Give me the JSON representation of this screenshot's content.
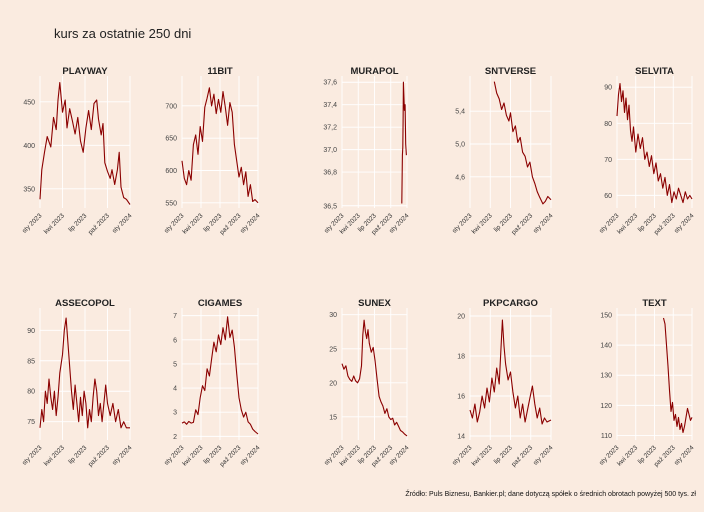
{
  "title": "kurs za ostatnie 250 dni",
  "source": "Źródło: Puls Biznesu, Bankier.pl; dane dotyczą spółek o średnich obrotach powyżej 500 tys. zł",
  "colors": {
    "line": "#8b0000",
    "background": "#faebe0",
    "grid": "#ffffff"
  },
  "chart_data": [
    {
      "type": "line",
      "title": "PLAYWAY",
      "x_ticks": [
        "sty 2023",
        "kwi 2023",
        "lip 2023",
        "paź 2023",
        "sty 2024"
      ],
      "y_ticks": [
        350,
        400,
        450
      ],
      "ylim": [
        328,
        475
      ],
      "points": [
        [
          0,
          338
        ],
        [
          0.02,
          372
        ],
        [
          0.05,
          392
        ],
        [
          0.08,
          410
        ],
        [
          0.12,
          398
        ],
        [
          0.15,
          432
        ],
        [
          0.18,
          418
        ],
        [
          0.2,
          452
        ],
        [
          0.22,
          472
        ],
        [
          0.25,
          438
        ],
        [
          0.28,
          452
        ],
        [
          0.3,
          420
        ],
        [
          0.33,
          442
        ],
        [
          0.36,
          428
        ],
        [
          0.39,
          413
        ],
        [
          0.42,
          432
        ],
        [
          0.45,
          405
        ],
        [
          0.48,
          392
        ],
        [
          0.51,
          420
        ],
        [
          0.54,
          440
        ],
        [
          0.57,
          418
        ],
        [
          0.6,
          448
        ],
        [
          0.63,
          452
        ],
        [
          0.65,
          430
        ],
        [
          0.68,
          412
        ],
        [
          0.7,
          425
        ],
        [
          0.72,
          380
        ],
        [
          0.75,
          370
        ],
        [
          0.78,
          362
        ],
        [
          0.8,
          372
        ],
        [
          0.83,
          355
        ],
        [
          0.86,
          372
        ],
        [
          0.88,
          392
        ],
        [
          0.9,
          352
        ],
        [
          0.93,
          340
        ],
        [
          0.96,
          338
        ],
        [
          1,
          332
        ]
      ]
    },
    {
      "type": "line",
      "title": "11BIT",
      "x_ticks": [
        "sty 2023",
        "kwi 2023",
        "lip 2023",
        "paź 2023",
        "sty 2024"
      ],
      "y_ticks": [
        550,
        600,
        650,
        700
      ],
      "ylim": [
        542,
        740
      ],
      "points": [
        [
          0,
          615
        ],
        [
          0.03,
          588
        ],
        [
          0.06,
          578
        ],
        [
          0.09,
          600
        ],
        [
          0.12,
          585
        ],
        [
          0.15,
          640
        ],
        [
          0.18,
          655
        ],
        [
          0.21,
          625
        ],
        [
          0.24,
          668
        ],
        [
          0.27,
          645
        ],
        [
          0.3,
          698
        ],
        [
          0.33,
          712
        ],
        [
          0.36,
          728
        ],
        [
          0.39,
          700
        ],
        [
          0.42,
          718
        ],
        [
          0.45,
          688
        ],
        [
          0.48,
          710
        ],
        [
          0.51,
          690
        ],
        [
          0.54,
          722
        ],
        [
          0.57,
          698
        ],
        [
          0.6,
          670
        ],
        [
          0.63,
          705
        ],
        [
          0.66,
          690
        ],
        [
          0.69,
          640
        ],
        [
          0.72,
          615
        ],
        [
          0.75,
          590
        ],
        [
          0.78,
          605
        ],
        [
          0.81,
          578
        ],
        [
          0.84,
          598
        ],
        [
          0.87,
          560
        ],
        [
          0.9,
          578
        ],
        [
          0.93,
          552
        ],
        [
          0.96,
          555
        ],
        [
          1,
          550
        ]
      ]
    },
    {
      "type": "line",
      "title": "MURAPOL",
      "x_ticks": [
        "sty 2023",
        "kwi 2023",
        "lip 2023",
        "paź 2023",
        "sty 2024"
      ],
      "y_ticks": [
        36.5,
        36.8,
        37,
        37.2,
        37.4,
        37.6
      ],
      "ylim": [
        36.48,
        37.62
      ],
      "y_labels": [
        "36,5",
        "36,8",
        "37,0",
        "37,2",
        "37,4",
        "37,6"
      ],
      "points": [
        [
          0.92,
          36.52
        ],
        [
          0.93,
          36.95
        ],
        [
          0.935,
          37.02
        ],
        [
          0.94,
          37.25
        ],
        [
          0.945,
          37.6
        ],
        [
          0.95,
          37.5
        ],
        [
          0.96,
          37.35
        ],
        [
          0.97,
          37.4
        ],
        [
          0.98,
          37.05
        ],
        [
          0.99,
          36.95
        ]
      ]
    },
    {
      "type": "line",
      "title": "SNTVERSE",
      "x_ticks": [
        "sty 2023",
        "kwi 2023",
        "lip 2023",
        "paź 2023",
        "sty 2024"
      ],
      "y_ticks": [
        4.6,
        5.0,
        5.4
      ],
      "ylim": [
        4.22,
        5.78
      ],
      "y_labels": [
        "4,6",
        "5,0",
        "5,4"
      ],
      "points": [
        [
          0.3,
          5.76
        ],
        [
          0.33,
          5.62
        ],
        [
          0.36,
          5.55
        ],
        [
          0.39,
          5.42
        ],
        [
          0.42,
          5.5
        ],
        [
          0.45,
          5.35
        ],
        [
          0.48,
          5.28
        ],
        [
          0.5,
          5.38
        ],
        [
          0.53,
          5.15
        ],
        [
          0.56,
          5.22
        ],
        [
          0.59,
          5.02
        ],
        [
          0.62,
          5.08
        ],
        [
          0.65,
          4.9
        ],
        [
          0.68,
          4.85
        ],
        [
          0.71,
          4.72
        ],
        [
          0.74,
          4.78
        ],
        [
          0.77,
          4.6
        ],
        [
          0.8,
          4.52
        ],
        [
          0.83,
          4.42
        ],
        [
          0.86,
          4.35
        ],
        [
          0.9,
          4.27
        ],
        [
          0.93,
          4.3
        ],
        [
          0.96,
          4.36
        ],
        [
          1,
          4.32
        ]
      ]
    },
    {
      "type": "line",
      "title": "SELVITA",
      "x_ticks": [
        "sty 2023",
        "kwi 2023",
        "lip 2023",
        "paź 2023",
        "sty 2024"
      ],
      "y_ticks": [
        60,
        70,
        80,
        90
      ],
      "ylim": [
        56.5,
        92
      ],
      "points": [
        [
          0,
          82
        ],
        [
          0.02,
          88
        ],
        [
          0.04,
          91
        ],
        [
          0.06,
          86
        ],
        [
          0.08,
          89
        ],
        [
          0.1,
          83
        ],
        [
          0.12,
          87
        ],
        [
          0.14,
          81
        ],
        [
          0.16,
          85
        ],
        [
          0.18,
          78
        ],
        [
          0.2,
          75
        ],
        [
          0.22,
          79
        ],
        [
          0.25,
          72
        ],
        [
          0.28,
          77
        ],
        [
          0.31,
          73
        ],
        [
          0.34,
          76
        ],
        [
          0.37,
          70
        ],
        [
          0.4,
          72
        ],
        [
          0.43,
          68
        ],
        [
          0.46,
          71
        ],
        [
          0.49,
          66
        ],
        [
          0.52,
          69
        ],
        [
          0.55,
          64
        ],
        [
          0.58,
          66
        ],
        [
          0.61,
          62
        ],
        [
          0.64,
          65
        ],
        [
          0.67,
          60
        ],
        [
          0.7,
          63
        ],
        [
          0.73,
          58
        ],
        [
          0.76,
          61
        ],
        [
          0.79,
          59
        ],
        [
          0.82,
          62
        ],
        [
          0.85,
          60
        ],
        [
          0.88,
          58
        ],
        [
          0.91,
          61
        ],
        [
          0.94,
          59
        ],
        [
          0.97,
          60
        ],
        [
          1,
          59
        ]
      ]
    },
    {
      "type": "line",
      "title": "ASSECOPOL",
      "x_ticks": [
        "sty 2023",
        "kwi 2023",
        "lip 2023",
        "paź 2023",
        "sty 2024"
      ],
      "y_ticks": [
        75,
        80,
        85,
        90
      ],
      "ylim": [
        72,
        93
      ],
      "points": [
        [
          0,
          74
        ],
        [
          0.02,
          77
        ],
        [
          0.04,
          75
        ],
        [
          0.06,
          80
        ],
        [
          0.08,
          78
        ],
        [
          0.1,
          82
        ],
        [
          0.12,
          79
        ],
        [
          0.14,
          77
        ],
        [
          0.16,
          80
        ],
        [
          0.18,
          76
        ],
        [
          0.2,
          79
        ],
        [
          0.22,
          83
        ],
        [
          0.25,
          86
        ],
        [
          0.27,
          90
        ],
        [
          0.29,
          92
        ],
        [
          0.31,
          88
        ],
        [
          0.33,
          84
        ],
        [
          0.35,
          80
        ],
        [
          0.37,
          77
        ],
        [
          0.39,
          81
        ],
        [
          0.41,
          78
        ],
        [
          0.43,
          75
        ],
        [
          0.45,
          79
        ],
        [
          0.47,
          76
        ],
        [
          0.49,
          80
        ],
        [
          0.51,
          78
        ],
        [
          0.53,
          74
        ],
        [
          0.55,
          77
        ],
        [
          0.57,
          75
        ],
        [
          0.59,
          79
        ],
        [
          0.61,
          82
        ],
        [
          0.63,
          80
        ],
        [
          0.65,
          76
        ],
        [
          0.67,
          78
        ],
        [
          0.69,
          75
        ],
        [
          0.71,
          78
        ],
        [
          0.73,
          81
        ],
        [
          0.75,
          78
        ],
        [
          0.78,
          76
        ],
        [
          0.81,
          78
        ],
        [
          0.84,
          75
        ],
        [
          0.87,
          77
        ],
        [
          0.9,
          74
        ],
        [
          0.93,
          75
        ],
        [
          0.96,
          74
        ],
        [
          1,
          74
        ]
      ]
    },
    {
      "type": "line",
      "title": "CIGAMES",
      "x_ticks": [
        "sty 2023",
        "kwi 2023",
        "lip 2023",
        "paź 2023",
        "sty 2024"
      ],
      "y_ticks": [
        2,
        3,
        4,
        5,
        6,
        7
      ],
      "ylim": [
        1.85,
        7.15
      ],
      "points": [
        [
          0,
          2.55
        ],
        [
          0.03,
          2.6
        ],
        [
          0.06,
          2.5
        ],
        [
          0.09,
          2.62
        ],
        [
          0.12,
          2.55
        ],
        [
          0.15,
          2.58
        ],
        [
          0.18,
          3.1
        ],
        [
          0.21,
          2.9
        ],
        [
          0.24,
          3.6
        ],
        [
          0.27,
          4.1
        ],
        [
          0.3,
          3.9
        ],
        [
          0.33,
          4.8
        ],
        [
          0.36,
          4.5
        ],
        [
          0.39,
          5.2
        ],
        [
          0.42,
          5.9
        ],
        [
          0.45,
          5.5
        ],
        [
          0.48,
          6.2
        ],
        [
          0.51,
          5.8
        ],
        [
          0.54,
          6.5
        ],
        [
          0.57,
          6.0
        ],
        [
          0.6,
          6.95
        ],
        [
          0.63,
          6.1
        ],
        [
          0.66,
          6.4
        ],
        [
          0.69,
          5.7
        ],
        [
          0.72,
          4.6
        ],
        [
          0.75,
          3.6
        ],
        [
          0.78,
          3.1
        ],
        [
          0.81,
          2.8
        ],
        [
          0.84,
          3.0
        ],
        [
          0.87,
          2.6
        ],
        [
          0.9,
          2.5
        ],
        [
          0.93,
          2.3
        ],
        [
          0.96,
          2.2
        ],
        [
          1,
          2.1
        ]
      ]
    },
    {
      "type": "line",
      "title": "SUNEX",
      "x_ticks": [
        "sty 2023",
        "kwi 2023",
        "lip 2023",
        "paź 2023",
        "sty 2024"
      ],
      "y_ticks": [
        15,
        20,
        25,
        30
      ],
      "ylim": [
        11.6,
        30.4
      ],
      "points": [
        [
          0,
          22.8
        ],
        [
          0.03,
          22
        ],
        [
          0.06,
          22.5
        ],
        [
          0.09,
          21
        ],
        [
          0.12,
          20.5
        ],
        [
          0.15,
          20.2
        ],
        [
          0.18,
          21
        ],
        [
          0.21,
          20.3
        ],
        [
          0.24,
          20
        ],
        [
          0.27,
          20.6
        ],
        [
          0.3,
          22.5
        ],
        [
          0.32,
          27
        ],
        [
          0.34,
          29.2
        ],
        [
          0.36,
          27.5
        ],
        [
          0.38,
          26.5
        ],
        [
          0.4,
          27.8
        ],
        [
          0.42,
          25.8
        ],
        [
          0.45,
          24.5
        ],
        [
          0.48,
          25.2
        ],
        [
          0.51,
          23.2
        ],
        [
          0.54,
          20.5
        ],
        [
          0.57,
          18
        ],
        [
          0.6,
          17.2
        ],
        [
          0.63,
          16.6
        ],
        [
          0.66,
          15.5
        ],
        [
          0.69,
          16.2
        ],
        [
          0.72,
          15
        ],
        [
          0.75,
          14.6
        ],
        [
          0.78,
          14.8
        ],
        [
          0.81,
          13.8
        ],
        [
          0.84,
          14.2
        ],
        [
          0.87,
          13.6
        ],
        [
          0.9,
          13
        ],
        [
          0.93,
          12.8
        ],
        [
          0.96,
          12.5
        ],
        [
          1,
          12.2
        ]
      ]
    },
    {
      "type": "line",
      "title": "PKPCARGO",
      "x_ticks": [
        "sty 2023",
        "kwi 2023",
        "lip 2023",
        "paź 2023",
        "sty 2024"
      ],
      "y_ticks": [
        14,
        16,
        18,
        20
      ],
      "ylim": [
        13.8,
        20.2
      ],
      "points": [
        [
          0,
          15.3
        ],
        [
          0.03,
          14.9
        ],
        [
          0.06,
          15.6
        ],
        [
          0.09,
          14.7
        ],
        [
          0.12,
          15.2
        ],
        [
          0.15,
          16
        ],
        [
          0.18,
          15.4
        ],
        [
          0.21,
          16.4
        ],
        [
          0.24,
          15.7
        ],
        [
          0.27,
          16.9
        ],
        [
          0.3,
          16.2
        ],
        [
          0.33,
          17.4
        ],
        [
          0.36,
          16.6
        ],
        [
          0.38,
          18.2
        ],
        [
          0.4,
          19.8
        ],
        [
          0.42,
          18.5
        ],
        [
          0.44,
          17.6
        ],
        [
          0.47,
          16.8
        ],
        [
          0.5,
          17.2
        ],
        [
          0.53,
          16.2
        ],
        [
          0.56,
          15.4
        ],
        [
          0.59,
          16
        ],
        [
          0.62,
          14.9
        ],
        [
          0.65,
          15.6
        ],
        [
          0.68,
          14.7
        ],
        [
          0.71,
          15.3
        ],
        [
          0.74,
          15.9
        ],
        [
          0.77,
          16.5
        ],
        [
          0.8,
          15.6
        ],
        [
          0.83,
          14.9
        ],
        [
          0.86,
          15.4
        ],
        [
          0.89,
          14.6
        ],
        [
          0.92,
          14.9
        ],
        [
          0.95,
          14.7
        ],
        [
          1,
          14.8
        ]
      ]
    },
    {
      "type": "line",
      "title": "TEXT",
      "x_ticks": [
        "sty 2023",
        "kwi 2023",
        "lip 2023",
        "paź 2023",
        "sty 2024"
      ],
      "y_ticks": [
        110,
        120,
        130,
        140,
        150
      ],
      "ylim": [
        108.5,
        151
      ],
      "points": [
        [
          0.62,
          149
        ],
        [
          0.64,
          147
        ],
        [
          0.66,
          140
        ],
        [
          0.68,
          133
        ],
        [
          0.7,
          125
        ],
        [
          0.72,
          118
        ],
        [
          0.74,
          121
        ],
        [
          0.76,
          115
        ],
        [
          0.78,
          117
        ],
        [
          0.8,
          113
        ],
        [
          0.82,
          116
        ],
        [
          0.84,
          112
        ],
        [
          0.86,
          114
        ],
        [
          0.88,
          111
        ],
        [
          0.9,
          113
        ],
        [
          0.92,
          116
        ],
        [
          0.94,
          119
        ],
        [
          0.96,
          117
        ],
        [
          0.98,
          115
        ],
        [
          1,
          116
        ]
      ]
    }
  ]
}
